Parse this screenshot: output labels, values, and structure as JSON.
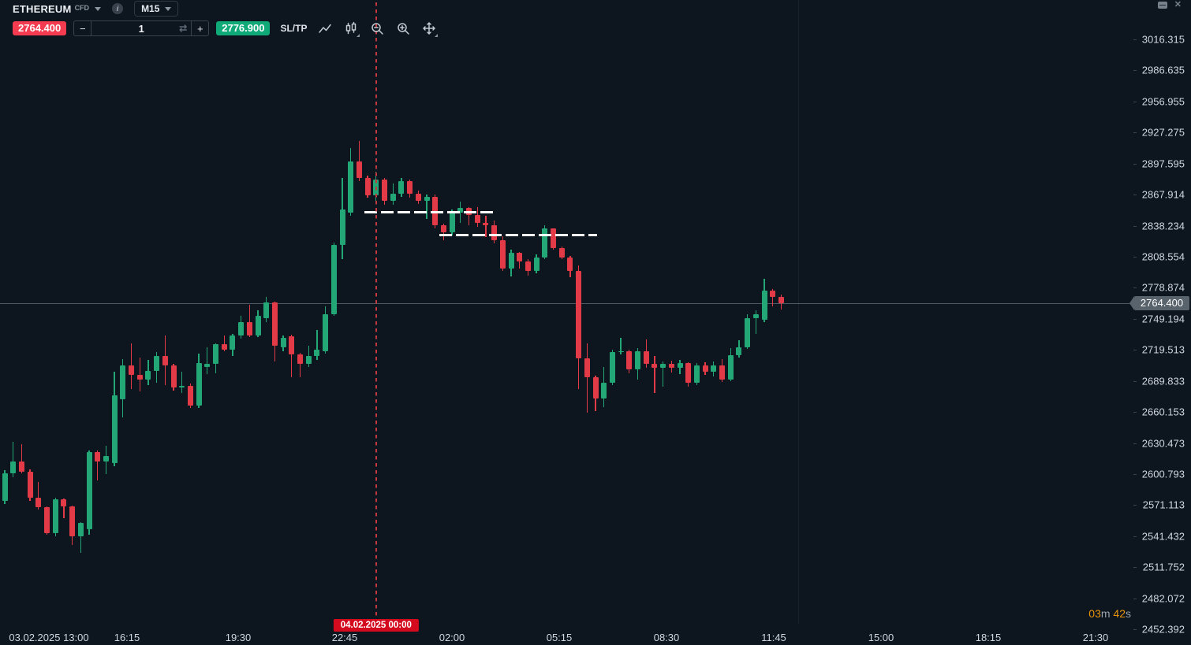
{
  "window": {
    "close_glyph": "✕"
  },
  "header": {
    "symbol": "ETHEREUM",
    "instrument_badge": "CFD",
    "timeframe": "M15"
  },
  "toolbar": {
    "sell_price": "2764.400",
    "minus_label": "−",
    "quantity": "1",
    "plus_label": "+",
    "buy_price": "2776.900",
    "sltp_label": "SL/TP",
    "icons": [
      "trend-line-icon",
      "candlestick-style-icon",
      "zoom-out-icon",
      "zoom-in-icon",
      "move-crosshair-icon"
    ]
  },
  "countdown": {
    "minutes": "03",
    "minutes_unit": "m",
    "seconds": "42",
    "seconds_unit": "s"
  },
  "chart_data": {
    "type": "candlestick",
    "title": "ETHEREUM CFD M15",
    "start_time": "03.02.2025 13:00",
    "interval_minutes": 15,
    "current_price": 2764.4,
    "current_price_label": "2764.400",
    "price_axis_labels": [
      "3016.315",
      "2986.635",
      "2956.955",
      "2927.275",
      "2897.595",
      "2867.914",
      "2838.234",
      "2808.554",
      "2778.874",
      "2749.194",
      "2719.513",
      "2689.833",
      "2660.153",
      "2630.473",
      "2600.793",
      "2571.113",
      "2541.432",
      "2511.752",
      "2482.072",
      "2452.392"
    ],
    "time_axis_labels": [
      "03.02.2025 13:00",
      "16:15",
      "19:30",
      "22:45",
      "02:00",
      "05:15",
      "08:30",
      "11:45",
      "15:00",
      "18:15",
      "21:30"
    ],
    "ylim": [
      2452.392,
      3016.315
    ],
    "grid": "off",
    "candles_ohlc": [
      [
        2575.0,
        2604.3,
        2572.0,
        2601.4
      ],
      [
        2601.4,
        2631.6,
        2597.9,
        2612.8
      ],
      [
        2612.8,
        2629.3,
        2601.4,
        2602.9
      ],
      [
        2602.9,
        2605.2,
        2575.0,
        2578.0
      ],
      [
        2578.0,
        2592.9,
        2566.6,
        2568.9
      ],
      [
        2568.9,
        2570.0,
        2542.5,
        2544.0
      ],
      [
        2544.0,
        2578.0,
        2541.0,
        2576.5
      ],
      [
        2576.5,
        2577.2,
        2558.4,
        2569.7
      ],
      [
        2569.7,
        2570.4,
        2532.7,
        2541.0
      ],
      [
        2541.0,
        2555.0,
        2525.2,
        2553.8
      ],
      [
        2548.0,
        2623.3,
        2542.5,
        2621.8
      ],
      [
        2621.8,
        2623.3,
        2595.0,
        2612.7
      ],
      [
        2612.7,
        2627.9,
        2601.0,
        2618.0
      ],
      [
        2611.0,
        2698.7,
        2608.0,
        2676.1
      ],
      [
        2672.3,
        2710.8,
        2655.0,
        2704.8
      ],
      [
        2704.8,
        2725.9,
        2682.1,
        2695.7
      ],
      [
        2695.7,
        2712.3,
        2679.9,
        2691.2
      ],
      [
        2691.2,
        2710.0,
        2685.9,
        2699.5
      ],
      [
        2699.5,
        2717.6,
        2688.2,
        2713.8
      ],
      [
        2713.8,
        2733.0,
        2686.0,
        2704.8
      ],
      [
        2704.8,
        2706.0,
        2680.6,
        2683.6
      ],
      [
        2683.6,
        2699.0,
        2678.5,
        2685.0
      ],
      [
        2685.0,
        2687.0,
        2664.0,
        2666.0
      ],
      [
        2666.0,
        2716.0,
        2664.0,
        2707.0
      ],
      [
        2703.0,
        2722.0,
        2696.0,
        2706.5
      ],
      [
        2706.5,
        2726.0,
        2697.2,
        2725.2
      ],
      [
        2725.2,
        2733.5,
        2718.0,
        2719.9
      ],
      [
        2719.9,
        2734.5,
        2713.8,
        2733.5
      ],
      [
        2733.5,
        2752.3,
        2730.0,
        2746.3
      ],
      [
        2746.3,
        2762.9,
        2732.0,
        2733.5
      ],
      [
        2733.5,
        2757.6,
        2732.0,
        2752.3
      ],
      [
        2750.0,
        2770.4,
        2746.0,
        2765.2
      ],
      [
        2765.2,
        2766.0,
        2708.5,
        2723.7
      ],
      [
        2722.0,
        2733.0,
        2718.0,
        2731.0
      ],
      [
        2732.5,
        2734.0,
        2693.5,
        2715.0
      ],
      [
        2715.0,
        2717.0,
        2693.5,
        2706.3
      ],
      [
        2706.3,
        2723.7,
        2703.0,
        2713.8
      ],
      [
        2713.8,
        2738.7,
        2710.0,
        2719.9
      ],
      [
        2718.4,
        2761.4,
        2716.0,
        2753.8
      ],
      [
        2753.8,
        2822.0,
        2752.0,
        2819.5
      ],
      [
        2819.5,
        2883.6,
        2806.6,
        2853.4
      ],
      [
        2850.4,
        2912.3,
        2848.0,
        2899.4
      ],
      [
        2899.4,
        2919.0,
        2881.0,
        2884.0
      ],
      [
        2884.0,
        2886.0,
        2865.0,
        2867.0
      ],
      [
        2867.0,
        2889.7,
        2861.0,
        2882.1
      ],
      [
        2882.1,
        2884.0,
        2858.0,
        2861.7
      ],
      [
        2861.7,
        2878.4,
        2858.0,
        2869.0
      ],
      [
        2869.0,
        2884.0,
        2866.0,
        2880.6
      ],
      [
        2880.6,
        2882.0,
        2865.0,
        2868.5
      ],
      [
        2868.5,
        2872.0,
        2859.0,
        2861.7
      ],
      [
        2861.7,
        2868.0,
        2844.4,
        2866.0
      ],
      [
        2866.0,
        2868.0,
        2836.0,
        2838.3
      ],
      [
        2838.3,
        2840.0,
        2824.0,
        2831.6
      ],
      [
        2831.6,
        2853.5,
        2829.0,
        2850.4
      ],
      [
        2850.4,
        2861.0,
        2840.6,
        2854.9
      ],
      [
        2854.9,
        2856.0,
        2838.3,
        2848.1
      ],
      [
        2848.1,
        2855.7,
        2836.8,
        2840.6
      ],
      [
        2840.6,
        2848.0,
        2827.0,
        2838.3
      ],
      [
        2838.3,
        2843.0,
        2821.7,
        2824.0
      ],
      [
        2824.0,
        2828.0,
        2795.3,
        2797.6
      ],
      [
        2797.6,
        2815.0,
        2790.0,
        2812.0
      ],
      [
        2812.0,
        2813.0,
        2797.0,
        2804.0
      ],
      [
        2804.0,
        2806.0,
        2790.5,
        2795.0
      ],
      [
        2795.0,
        2810.5,
        2793.0,
        2808.0
      ],
      [
        2808.0,
        2838.3,
        2806.0,
        2835.3
      ],
      [
        2835.3,
        2836.0,
        2815.0,
        2816.5
      ],
      [
        2816.5,
        2818.0,
        2806.6,
        2808.1
      ],
      [
        2808.1,
        2809.0,
        2789.2,
        2795.0
      ],
      [
        2795.0,
        2800.0,
        2682.1,
        2711.6
      ],
      [
        2711.6,
        2726.0,
        2659.5,
        2693.5
      ],
      [
        2693.5,
        2695.0,
        2661.0,
        2673.1
      ],
      [
        2673.1,
        2703.3,
        2664.8,
        2688.2
      ],
      [
        2688.2,
        2719.9,
        2685.9,
        2717.6
      ],
      [
        2717.6,
        2731.2,
        2715.0,
        2718.4
      ],
      [
        2718.4,
        2720.0,
        2697.2,
        2701.0
      ],
      [
        2701.0,
        2721.4,
        2691.2,
        2718.4
      ],
      [
        2718.4,
        2729.7,
        2702.5,
        2706.3
      ],
      [
        2706.3,
        2713.8,
        2678.4,
        2702.5
      ],
      [
        2702.5,
        2708.5,
        2684.4,
        2706.3
      ],
      [
        2706.3,
        2709.2,
        2698.0,
        2702.5
      ],
      [
        2702.5,
        2710.0,
        2696.0,
        2707.0
      ],
      [
        2707.0,
        2708.0,
        2684.0,
        2688.2
      ],
      [
        2688.2,
        2707.0,
        2686.0,
        2704.8
      ],
      [
        2704.8,
        2707.5,
        2695.5,
        2699.0
      ],
      [
        2699.0,
        2708.5,
        2694.0,
        2704.5
      ],
      [
        2704.5,
        2711.0,
        2689.0,
        2691.2
      ],
      [
        2691.2,
        2721.4,
        2689.5,
        2714.5
      ],
      [
        2714.5,
        2729.0,
        2712.0,
        2722.1
      ],
      [
        2722.1,
        2753.8,
        2720.5,
        2750.1
      ],
      [
        2750.1,
        2757.6,
        2734.9,
        2753.8
      ],
      [
        2748.0,
        2787.8,
        2746.0,
        2776.5
      ],
      [
        2776.5,
        2778.0,
        2761.4,
        2770.4
      ],
      [
        2770.4,
        2772.7,
        2758.0,
        2764.4
      ]
    ],
    "annotations": {
      "vertical_line": {
        "label": "04.02.2025 00:00",
        "candle_index": 44
      },
      "resistance_dashes": [
        {
          "price": 2851.0,
          "from_index": 42.6,
          "to_index": 57.9
        },
        {
          "price": 2829.0,
          "from_index": 51.5,
          "to_index": 70.2
        }
      ]
    },
    "colors": {
      "bull": "#23a776",
      "bear": "#e23b47",
      "sell_button": "#f43b4f",
      "buy_button": "#0faa77",
      "vline": "#c2383f",
      "vline_label_bg": "#d40a1e",
      "countdown_accent": "#e8930c",
      "background": "#0d151e"
    },
    "legend": "none"
  }
}
